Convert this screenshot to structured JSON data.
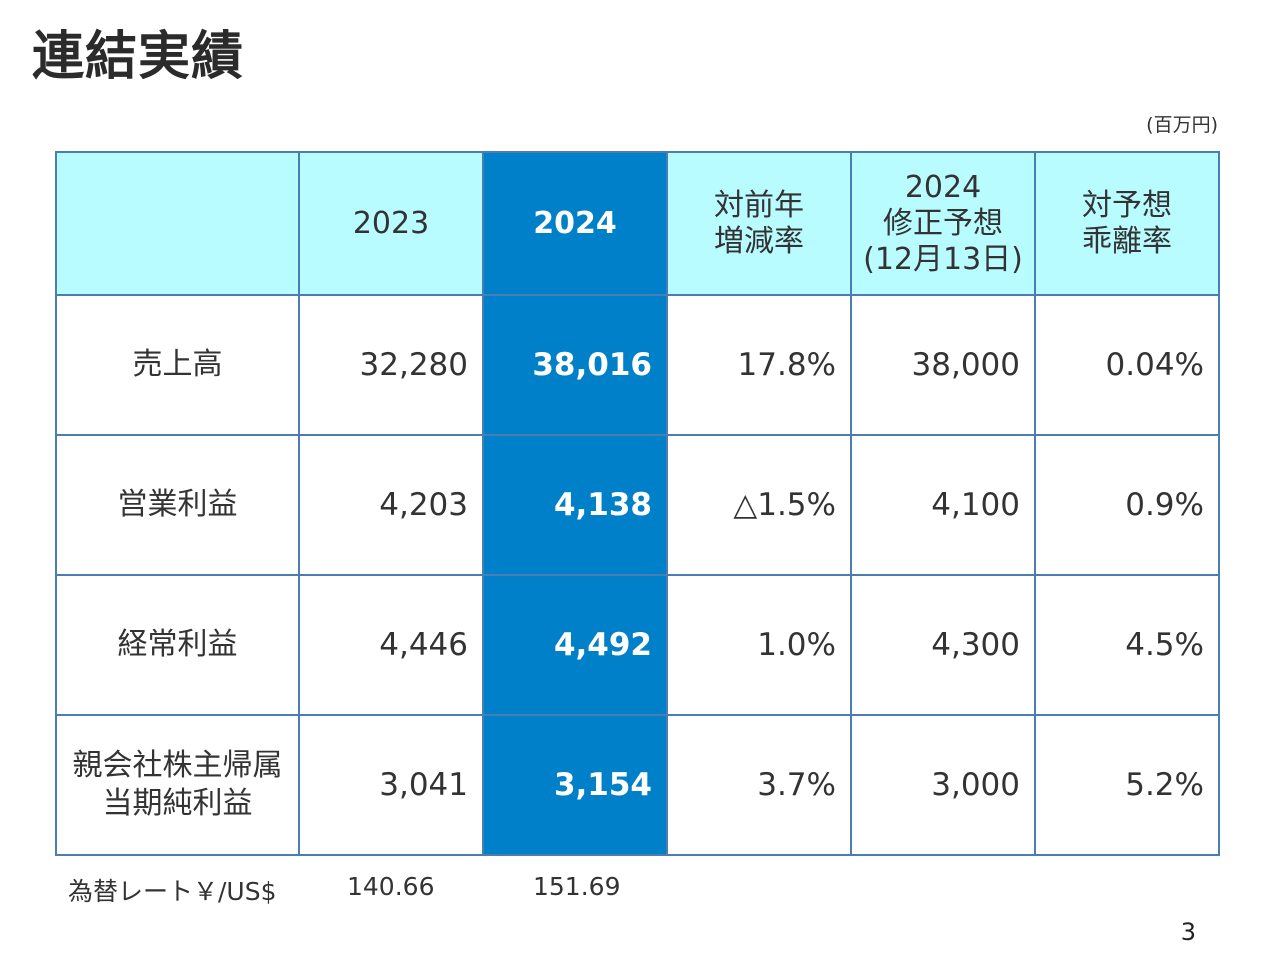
{
  "title": "連結実績",
  "unit": "(百万円)",
  "table": {
    "headers": [
      {
        "lines": [
          ""
        ]
      },
      {
        "lines": [
          "2023"
        ]
      },
      {
        "lines": [
          "2024"
        ],
        "highlight": true
      },
      {
        "lines": [
          "対前年",
          "増減率"
        ]
      },
      {
        "lines": [
          "2024",
          "修正予想",
          "(12月13日)"
        ]
      },
      {
        "lines": [
          "対予想",
          "乖離率"
        ]
      }
    ],
    "rows": [
      {
        "label": [
          "売上高"
        ],
        "values": [
          "32,280",
          "38,016",
          "17.8%",
          "38,000",
          "0.04%"
        ]
      },
      {
        "label": [
          "営業利益"
        ],
        "values": [
          "4,203",
          "4,138",
          "△1.5%",
          "4,100",
          "0.9%"
        ]
      },
      {
        "label": [
          "経常利益"
        ],
        "values": [
          "4,446",
          "4,492",
          "1.0%",
          "4,300",
          "4.5%"
        ]
      },
      {
        "label": [
          "親会社株主帰属",
          "当期純利益"
        ],
        "values": [
          "3,041",
          "3,154",
          "3.7%",
          "3,000",
          "5.2%"
        ]
      }
    ]
  },
  "fx": {
    "label": "為替レート￥/US$",
    "v2023": "140.66",
    "v2024": "151.69"
  },
  "page_number": "3",
  "colors": {
    "header_bg": "#b8fcff",
    "highlight_bg": "#0080c8",
    "border": "#4a7eb3"
  }
}
